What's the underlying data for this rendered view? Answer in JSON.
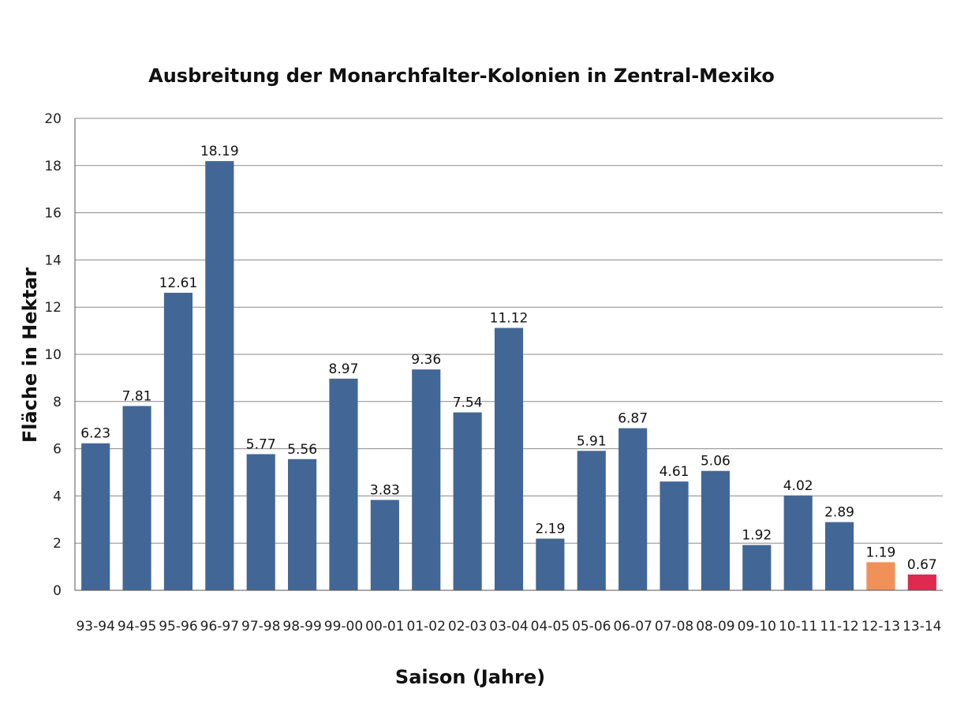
{
  "chart_data": {
    "type": "bar",
    "title": "Ausbreitung der Monarchfalter-Kolonien in Zentral-Mexiko",
    "xlabel": "Saison (Jahre)",
    "ylabel": "Fläche in Hektar",
    "ylim": [
      0,
      20
    ],
    "yticks": [
      0,
      2,
      4,
      6,
      8,
      10,
      12,
      14,
      16,
      18,
      20
    ],
    "grid": true,
    "categories": [
      "93-94",
      "94-95",
      "95-96",
      "96-97",
      "97-98",
      "98-99",
      "99-00",
      "00-01",
      "01-02",
      "02-03",
      "03-04",
      "04-05",
      "05-06",
      "06-07",
      "07-08",
      "08-09",
      "09-10",
      "10-11",
      "11-12",
      "12-13",
      "13-14"
    ],
    "values": [
      6.23,
      7.81,
      12.61,
      18.19,
      5.77,
      5.56,
      8.97,
      3.83,
      9.36,
      7.54,
      11.12,
      2.19,
      5.91,
      6.87,
      4.61,
      5.06,
      1.92,
      4.02,
      2.89,
      1.19,
      0.67
    ],
    "data_labels": [
      "6.23",
      "7.81",
      "12.61",
      "18.19",
      "5.77",
      "5.56",
      "8.97",
      "3.83",
      "9.36",
      "7.54",
      "11.12",
      "2.19",
      "5.91",
      "6.87",
      "4.61",
      "5.06",
      "1.92",
      "4.02",
      "2.89",
      "1.19",
      "0.67"
    ],
    "colors": {
      "default": "#426796",
      "12-13": "#f0915a",
      "13-14": "#e0294f"
    }
  }
}
